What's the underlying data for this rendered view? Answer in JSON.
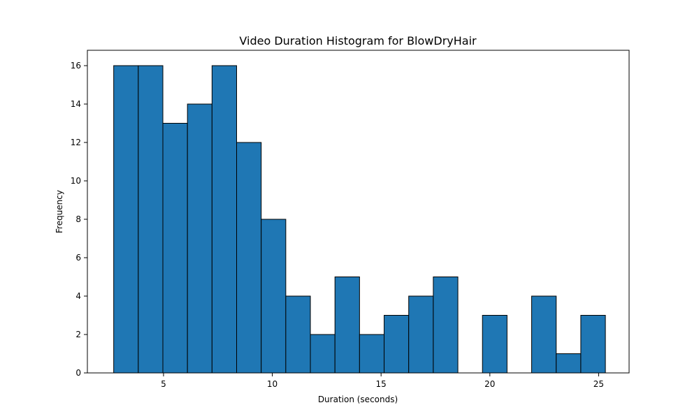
{
  "chart_data": {
    "type": "bar",
    "title": "Video Duration Histogram for BlowDryHair",
    "xlabel": "Duration (seconds)",
    "ylabel": "Frequency",
    "xlim": [
      1.5,
      26.4
    ],
    "ylim": [
      0,
      16.8
    ],
    "xticks": [
      5,
      10,
      15,
      20,
      25
    ],
    "yticks": [
      0,
      2,
      4,
      6,
      8,
      10,
      12,
      14,
      16
    ],
    "grid": false,
    "bar_color": "#1f77b4",
    "edge_color": "#000000",
    "bins": [
      {
        "start": 2.71,
        "end": 3.84,
        "count": 16
      },
      {
        "start": 3.84,
        "end": 4.97,
        "count": 16
      },
      {
        "start": 4.97,
        "end": 6.1,
        "count": 13
      },
      {
        "start": 6.1,
        "end": 7.23,
        "count": 14
      },
      {
        "start": 7.23,
        "end": 8.36,
        "count": 16
      },
      {
        "start": 8.36,
        "end": 9.49,
        "count": 12
      },
      {
        "start": 9.49,
        "end": 10.62,
        "count": 8
      },
      {
        "start": 10.62,
        "end": 11.75,
        "count": 4
      },
      {
        "start": 11.75,
        "end": 12.88,
        "count": 2
      },
      {
        "start": 12.88,
        "end": 14.01,
        "count": 5
      },
      {
        "start": 14.01,
        "end": 15.14,
        "count": 2
      },
      {
        "start": 15.14,
        "end": 16.27,
        "count": 3
      },
      {
        "start": 16.27,
        "end": 17.4,
        "count": 4
      },
      {
        "start": 17.4,
        "end": 18.53,
        "count": 5
      },
      {
        "start": 18.53,
        "end": 19.66,
        "count": 0
      },
      {
        "start": 19.66,
        "end": 20.79,
        "count": 3
      },
      {
        "start": 20.79,
        "end": 21.92,
        "count": 0
      },
      {
        "start": 21.92,
        "end": 23.05,
        "count": 4
      },
      {
        "start": 23.05,
        "end": 24.18,
        "count": 1
      },
      {
        "start": 24.18,
        "end": 25.31,
        "count": 3
      }
    ]
  }
}
